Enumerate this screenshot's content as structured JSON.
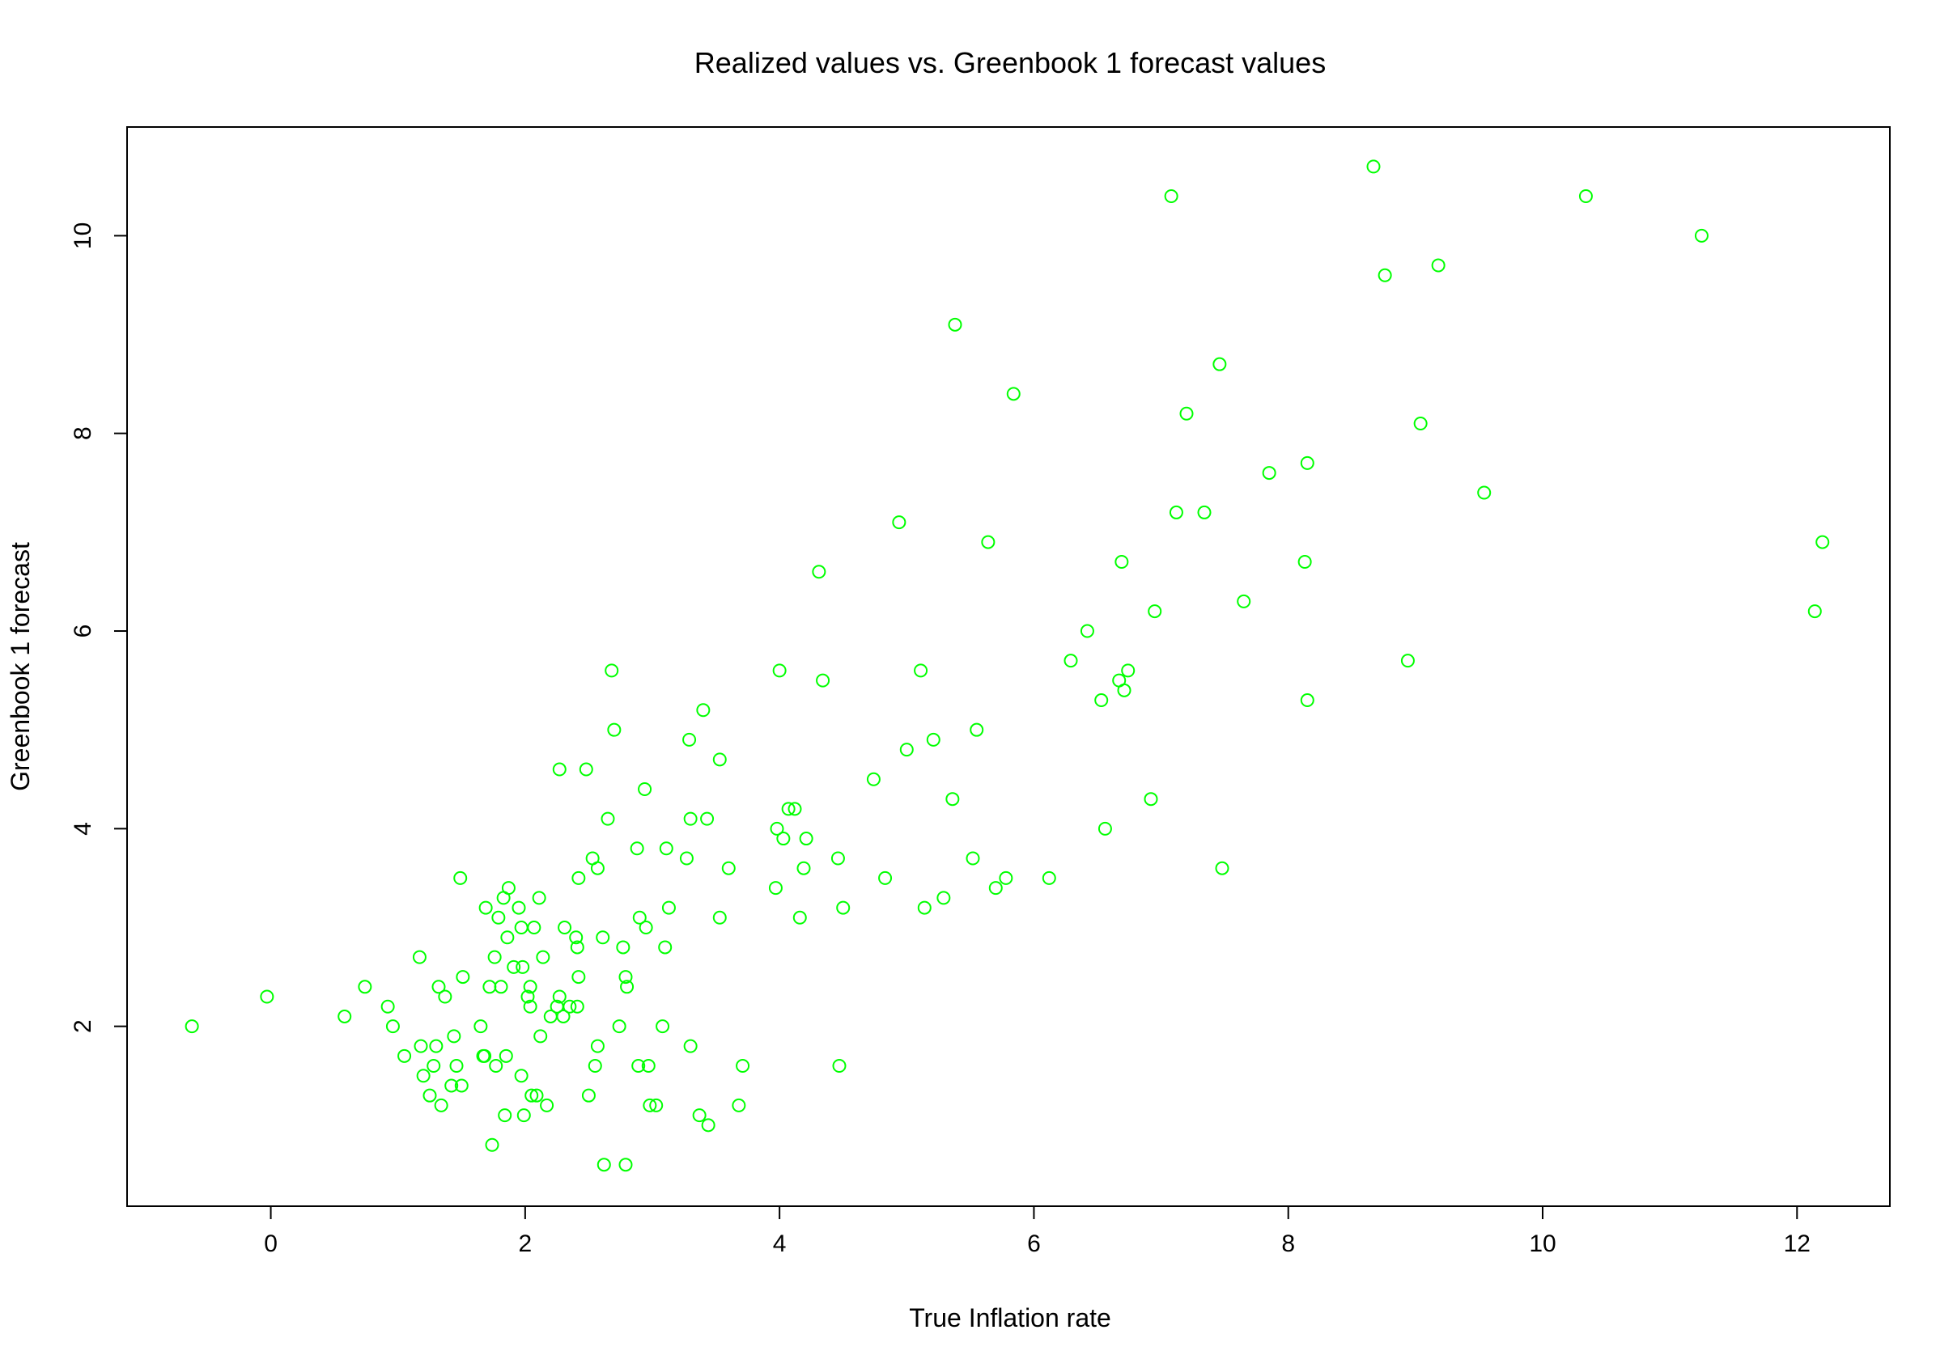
{
  "chart_data": {
    "type": "scatter",
    "title": "Realized values vs. Greenbook 1 forecast values",
    "xlabel": "True Inflation rate",
    "ylabel": "Greenbook 1 forecast",
    "xlim": [
      -1.13,
      12.73
    ],
    "ylim": [
      0.18,
      11.1
    ],
    "xticks": [
      0,
      2,
      4,
      6,
      8,
      10,
      12
    ],
    "yticks": [
      2,
      4,
      6,
      8,
      10
    ],
    "grid": false,
    "legend": "none",
    "point_color": "#00ff00",
    "marker": "open-circle",
    "points": [
      [
        -0.62,
        2.0
      ],
      [
        -0.03,
        2.3
      ],
      [
        0.58,
        2.1
      ],
      [
        0.74,
        2.4
      ],
      [
        0.92,
        2.2
      ],
      [
        0.96,
        2.0
      ],
      [
        1.05,
        1.7
      ],
      [
        1.17,
        2.7
      ],
      [
        1.18,
        1.8
      ],
      [
        1.2,
        1.5
      ],
      [
        1.25,
        1.3
      ],
      [
        1.28,
        1.6
      ],
      [
        1.3,
        1.8
      ],
      [
        1.32,
        2.4
      ],
      [
        1.34,
        1.2
      ],
      [
        1.37,
        2.3
      ],
      [
        1.42,
        1.4
      ],
      [
        1.44,
        1.9
      ],
      [
        1.46,
        1.6
      ],
      [
        1.49,
        3.5
      ],
      [
        1.5,
        1.4
      ],
      [
        1.51,
        2.5
      ],
      [
        1.65,
        2.0
      ],
      [
        1.67,
        1.7
      ],
      [
        1.68,
        1.7
      ],
      [
        1.69,
        3.2
      ],
      [
        1.72,
        2.4
      ],
      [
        1.74,
        0.8
      ],
      [
        1.76,
        2.7
      ],
      [
        1.77,
        1.6
      ],
      [
        1.79,
        3.1
      ],
      [
        1.81,
        2.4
      ],
      [
        1.83,
        3.3
      ],
      [
        1.84,
        1.1
      ],
      [
        1.85,
        1.7
      ],
      [
        1.86,
        2.9
      ],
      [
        1.87,
        3.4
      ],
      [
        1.91,
        2.6
      ],
      [
        1.95,
        3.2
      ],
      [
        1.97,
        1.5
      ],
      [
        1.97,
        3.0
      ],
      [
        1.98,
        2.6
      ],
      [
        1.99,
        1.1
      ],
      [
        2.02,
        2.3
      ],
      [
        2.04,
        2.2
      ],
      [
        2.04,
        2.4
      ],
      [
        2.05,
        1.3
      ],
      [
        2.07,
        3.0
      ],
      [
        2.09,
        1.3
      ],
      [
        2.11,
        3.3
      ],
      [
        2.12,
        1.9
      ],
      [
        2.14,
        2.7
      ],
      [
        2.17,
        1.2
      ],
      [
        2.2,
        2.1
      ],
      [
        2.25,
        2.2
      ],
      [
        2.27,
        2.3
      ],
      [
        2.27,
        4.6
      ],
      [
        2.3,
        2.1
      ],
      [
        2.31,
        3.0
      ],
      [
        2.35,
        2.2
      ],
      [
        2.4,
        2.9
      ],
      [
        2.41,
        2.2
      ],
      [
        2.41,
        2.8
      ],
      [
        2.42,
        2.5
      ],
      [
        2.42,
        3.5
      ],
      [
        2.48,
        4.6
      ],
      [
        2.5,
        1.3
      ],
      [
        2.53,
        3.7
      ],
      [
        2.55,
        1.6
      ],
      [
        2.57,
        1.8
      ],
      [
        2.57,
        3.6
      ],
      [
        2.61,
        2.9
      ],
      [
        2.62,
        0.6
      ],
      [
        2.65,
        4.1
      ],
      [
        2.68,
        5.6
      ],
      [
        2.7,
        5.0
      ],
      [
        2.74,
        2.0
      ],
      [
        2.77,
        2.8
      ],
      [
        2.79,
        2.5
      ],
      [
        2.79,
        0.6
      ],
      [
        2.8,
        2.4
      ],
      [
        2.88,
        3.8
      ],
      [
        2.89,
        1.6
      ],
      [
        2.9,
        3.1
      ],
      [
        2.94,
        4.4
      ],
      [
        2.95,
        3.0
      ],
      [
        2.97,
        1.6
      ],
      [
        2.98,
        1.2
      ],
      [
        3.03,
        1.2
      ],
      [
        3.08,
        2.0
      ],
      [
        3.1,
        2.8
      ],
      [
        3.11,
        3.8
      ],
      [
        3.13,
        3.2
      ],
      [
        3.27,
        3.7
      ],
      [
        3.29,
        4.9
      ],
      [
        3.3,
        4.1
      ],
      [
        3.3,
        1.8
      ],
      [
        3.37,
        1.1
      ],
      [
        3.4,
        5.2
      ],
      [
        3.43,
        4.1
      ],
      [
        3.44,
        1.0
      ],
      [
        3.53,
        4.7
      ],
      [
        3.53,
        3.1
      ],
      [
        3.6,
        3.6
      ],
      [
        3.68,
        1.2
      ],
      [
        3.71,
        1.6
      ],
      [
        3.97,
        3.4
      ],
      [
        3.98,
        4.0
      ],
      [
        4.0,
        5.6
      ],
      [
        4.03,
        3.9
      ],
      [
        4.07,
        4.2
      ],
      [
        4.12,
        4.2
      ],
      [
        4.16,
        3.1
      ],
      [
        4.19,
        3.6
      ],
      [
        4.21,
        3.9
      ],
      [
        4.31,
        6.6
      ],
      [
        4.34,
        5.5
      ],
      [
        4.46,
        3.7
      ],
      [
        4.47,
        1.6
      ],
      [
        4.5,
        3.2
      ],
      [
        4.74,
        4.5
      ],
      [
        4.83,
        3.5
      ],
      [
        4.94,
        7.1
      ],
      [
        5.0,
        4.8
      ],
      [
        5.11,
        5.6
      ],
      [
        5.14,
        3.2
      ],
      [
        5.21,
        4.9
      ],
      [
        5.29,
        3.3
      ],
      [
        5.36,
        4.3
      ],
      [
        5.38,
        9.1
      ],
      [
        5.52,
        3.7
      ],
      [
        5.55,
        5.0
      ],
      [
        5.64,
        6.9
      ],
      [
        5.7,
        3.4
      ],
      [
        5.78,
        3.5
      ],
      [
        5.84,
        8.4
      ],
      [
        6.12,
        3.5
      ],
      [
        6.29,
        5.7
      ],
      [
        6.42,
        6.0
      ],
      [
        6.53,
        5.3
      ],
      [
        6.56,
        4.0
      ],
      [
        6.67,
        5.5
      ],
      [
        6.69,
        6.7
      ],
      [
        6.71,
        5.4
      ],
      [
        6.74,
        5.6
      ],
      [
        6.92,
        4.3
      ],
      [
        6.95,
        6.2
      ],
      [
        7.08,
        10.4
      ],
      [
        7.12,
        7.2
      ],
      [
        7.2,
        8.2
      ],
      [
        7.34,
        7.2
      ],
      [
        7.46,
        8.7
      ],
      [
        7.48,
        3.6
      ],
      [
        7.65,
        6.3
      ],
      [
        7.85,
        7.6
      ],
      [
        8.13,
        6.7
      ],
      [
        8.15,
        7.7
      ],
      [
        8.15,
        5.3
      ],
      [
        8.67,
        10.7
      ],
      [
        8.76,
        9.6
      ],
      [
        8.94,
        5.7
      ],
      [
        9.04,
        8.1
      ],
      [
        9.18,
        9.7
      ],
      [
        9.54,
        7.4
      ],
      [
        10.34,
        10.4
      ],
      [
        11.25,
        10.0
      ],
      [
        12.14,
        6.2
      ],
      [
        12.2,
        6.9
      ]
    ]
  }
}
